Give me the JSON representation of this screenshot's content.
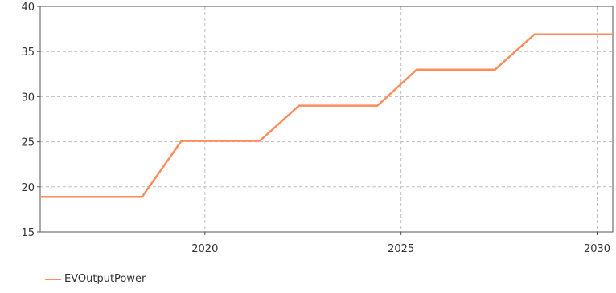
{
  "chart_data": {
    "type": "line",
    "xlim": [
      2015.8,
      2030.4
    ],
    "ylim": [
      15,
      40
    ],
    "x_ticks": [
      2020,
      2025,
      2030
    ],
    "y_ticks": [
      15,
      20,
      25,
      30,
      35,
      40
    ],
    "grid": true,
    "legend_position": "bottom-left",
    "series": [
      {
        "name": "EVOutputPower",
        "color": "#ff8c5a",
        "x": [
          2015.8,
          2018.4,
          2019.4,
          2021.4,
          2022.4,
          2024.4,
          2025.4,
          2027.4,
          2028.4,
          2030.4
        ],
        "y": [
          18.9,
          18.9,
          25.1,
          25.1,
          29,
          29,
          33,
          33,
          36.9,
          36.9
        ]
      }
    ]
  }
}
